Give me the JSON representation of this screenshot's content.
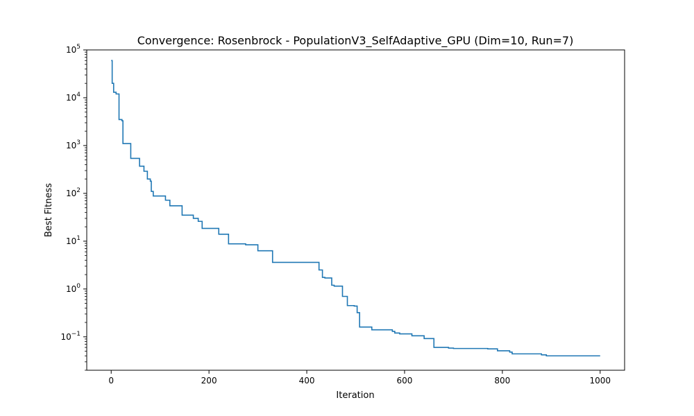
{
  "chart_data": {
    "type": "line",
    "title": "Convergence: Rosenbrock - PopulationV3_SelfAdaptive_GPU (Dim=10, Run=7)",
    "xlabel": "Iteration",
    "ylabel": "Best Fitness",
    "yscale": "log",
    "xlim": [
      -50,
      1050
    ],
    "ylim": [
      0.02,
      100000
    ],
    "grid": false,
    "legend": "none",
    "x_ticks": [
      {
        "value": 0,
        "label": "0"
      },
      {
        "value": 200,
        "label": "200"
      },
      {
        "value": 400,
        "label": "400"
      },
      {
        "value": 600,
        "label": "600"
      },
      {
        "value": 800,
        "label": "800"
      },
      {
        "value": 1000,
        "label": "1000"
      }
    ],
    "y_ticks": [
      {
        "value": 0.1,
        "base": "10",
        "exp": "−1"
      },
      {
        "value": 1,
        "base": "10",
        "exp": "0"
      },
      {
        "value": 10,
        "base": "10",
        "exp": "1"
      },
      {
        "value": 100,
        "base": "10",
        "exp": "2"
      },
      {
        "value": 1000,
        "base": "10",
        "exp": "3"
      },
      {
        "value": 10000,
        "base": "10",
        "exp": "4"
      },
      {
        "value": 100000,
        "base": "10",
        "exp": "5"
      }
    ],
    "series": [
      {
        "color": "#1f77b4",
        "step": true,
        "x": [
          0,
          2,
          5,
          10,
          16,
          22,
          24,
          40,
          58,
          67,
          74,
          80,
          82,
          86,
          111,
          120,
          145,
          168,
          178,
          186,
          220,
          240,
          275,
          300,
          330,
          425,
          432,
          437,
          451,
          456,
          473,
          483,
          497,
          503,
          508,
          533,
          575,
          580,
          590,
          615,
          640,
          660,
          690,
          700,
          770,
          790,
          815,
          820,
          880,
          890,
          1000
        ],
        "y": [
          60000,
          20000,
          13000,
          12000,
          3500,
          3300,
          1100,
          540,
          370,
          290,
          200,
          180,
          110,
          88,
          72,
          55,
          35,
          30,
          26,
          18.5,
          14,
          8.8,
          8.4,
          6.3,
          3.6,
          2.5,
          1.75,
          1.7,
          1.2,
          1.15,
          0.7,
          0.45,
          0.44,
          0.32,
          0.16,
          0.14,
          0.13,
          0.12,
          0.115,
          0.105,
          0.092,
          0.06,
          0.058,
          0.057,
          0.056,
          0.051,
          0.048,
          0.044,
          0.042,
          0.04,
          0.04
        ]
      }
    ]
  }
}
